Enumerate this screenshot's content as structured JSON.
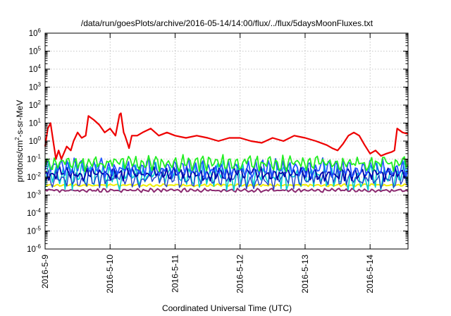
{
  "chart_data": {
    "type": "line",
    "title": "/data/run/goesPlots/archive/2016-05-14/14:00/flux/../flux/5daysMoonFluxes.txt",
    "xlabel": "Coordinated Universal Time (UTC)",
    "ylabel": {
      "pre": "protons/cm",
      "sup": "2",
      "post": "-s-sr-MeV"
    },
    "yscale": "log",
    "ylim_exp": [
      -6,
      6
    ],
    "y_ticks": [
      {
        "exp": -6,
        "base": "10",
        "sup": "-6"
      },
      {
        "exp": -5,
        "base": "10",
        "sup": "-5"
      },
      {
        "exp": -4,
        "base": "10",
        "sup": "-4"
      },
      {
        "exp": -3,
        "base": "10",
        "sup": "-3"
      },
      {
        "exp": -2,
        "base": "10",
        "sup": "-2"
      },
      {
        "exp": -1,
        "base": "10",
        "sup": "-1"
      },
      {
        "exp": 0,
        "base": "10",
        "sup": "0"
      },
      {
        "exp": 1,
        "base": "10",
        "sup": "1"
      },
      {
        "exp": 2,
        "base": "10",
        "sup": "2"
      },
      {
        "exp": 3,
        "base": "10",
        "sup": "3"
      },
      {
        "exp": 4,
        "base": "10",
        "sup": "4"
      },
      {
        "exp": 5,
        "base": "10",
        "sup": "5"
      },
      {
        "exp": 6,
        "base": "10",
        "sup": "6"
      }
    ],
    "x_ticks": [
      "2016-5-9",
      "2016-5-10",
      "2016-5-11",
      "2016-5-12",
      "2016-5-13",
      "2016-5-14"
    ],
    "xlim": [
      "2016-05-09 00:00",
      "2016-05-14 14:00"
    ],
    "grid": true,
    "series": [
      {
        "color": "#ee0000",
        "width": 2.2,
        "x": [
          "2016-05-09 00:00",
          "2016-05-09 01:00",
          "2016-05-09 02:00",
          "2016-05-09 03:00",
          "2016-05-09 04:00",
          "2016-05-09 05:00",
          "2016-05-09 06:00",
          "2016-05-09 08:00",
          "2016-05-09 09:30",
          "2016-05-09 10:30",
          "2016-05-09 12:00",
          "2016-05-09 13:30",
          "2016-05-09 15:00",
          "2016-05-09 16:00",
          "2016-05-09 18:00",
          "2016-05-09 20:00",
          "2016-05-09 22:00",
          "2016-05-10 00:00",
          "2016-05-10 02:00",
          "2016-05-10 03:30",
          "2016-05-10 04:00",
          "2016-05-10 05:00",
          "2016-05-10 05:30",
          "2016-05-10 06:30",
          "2016-05-10 07:00",
          "2016-05-10 08:00",
          "2016-05-10 10:00",
          "2016-05-10 12:00",
          "2016-05-10 15:00",
          "2016-05-10 18:00",
          "2016-05-10 21:00",
          "2016-05-11 00:00",
          "2016-05-11 04:00",
          "2016-05-11 08:00",
          "2016-05-11 12:00",
          "2016-05-11 16:00",
          "2016-05-11 20:00",
          "2016-05-12 00:00",
          "2016-05-12 04:00",
          "2016-05-12 08:00",
          "2016-05-12 12:00",
          "2016-05-12 16:00",
          "2016-05-12 20:00",
          "2016-05-13 00:00",
          "2016-05-13 04:00",
          "2016-05-13 08:00",
          "2016-05-13 10:00",
          "2016-05-13 12:00",
          "2016-05-13 14:00",
          "2016-05-13 16:00",
          "2016-05-13 18:00",
          "2016-05-13 20:00",
          "2016-05-13 22:00",
          "2016-05-14 00:00",
          "2016-05-14 02:00",
          "2016-05-14 04:00",
          "2016-05-14 06:00",
          "2016-05-14 08:00",
          "2016-05-14 09:00",
          "2016-05-14 10:00",
          "2016-05-14 12:00",
          "2016-05-14 14:00"
        ],
        "y": [
          0.5,
          5,
          10,
          1,
          0.1,
          0.3,
          0.1,
          0.5,
          0.3,
          1,
          3,
          1.5,
          2,
          25,
          15,
          8,
          3,
          5,
          2,
          30,
          35,
          3,
          2,
          0.7,
          0.4,
          2,
          2,
          3,
          5,
          2,
          3,
          2,
          1.5,
          2,
          1.5,
          1,
          1.5,
          1.5,
          1,
          0.8,
          1.5,
          1,
          2,
          1.5,
          1,
          0.6,
          0.4,
          0.3,
          0.7,
          2,
          3,
          2,
          0.6,
          0.2,
          0.3,
          0.15,
          0.2,
          0.25,
          0.3,
          5,
          3,
          2.5
        ]
      },
      {
        "color": "#22ee22",
        "width": 1.8,
        "base": 0.06,
        "amp": 0.25,
        "seed": 11
      },
      {
        "color": "#00cccc",
        "width": 1.6,
        "base": 0.012,
        "amp": 0.45,
        "seed": 23
      },
      {
        "color": "#2255ff",
        "width": 1.8,
        "base": 0.03,
        "amp": 0.3,
        "seed": 37
      },
      {
        "color": "#0000aa",
        "width": 1.8,
        "base": 0.015,
        "amp": 0.22,
        "seed": 51
      },
      {
        "color": "#2244cc",
        "width": 1.4,
        "base": 0.008,
        "amp": 0.3,
        "seed": 67
      },
      {
        "color": "#eeee00",
        "width": 2,
        "base": 0.0035,
        "amp": 0.04,
        "seed": 79
      },
      {
        "color": "#8b2a70",
        "width": 2,
        "base": 0.0018,
        "amp": 0.06,
        "seed": 91
      }
    ]
  }
}
